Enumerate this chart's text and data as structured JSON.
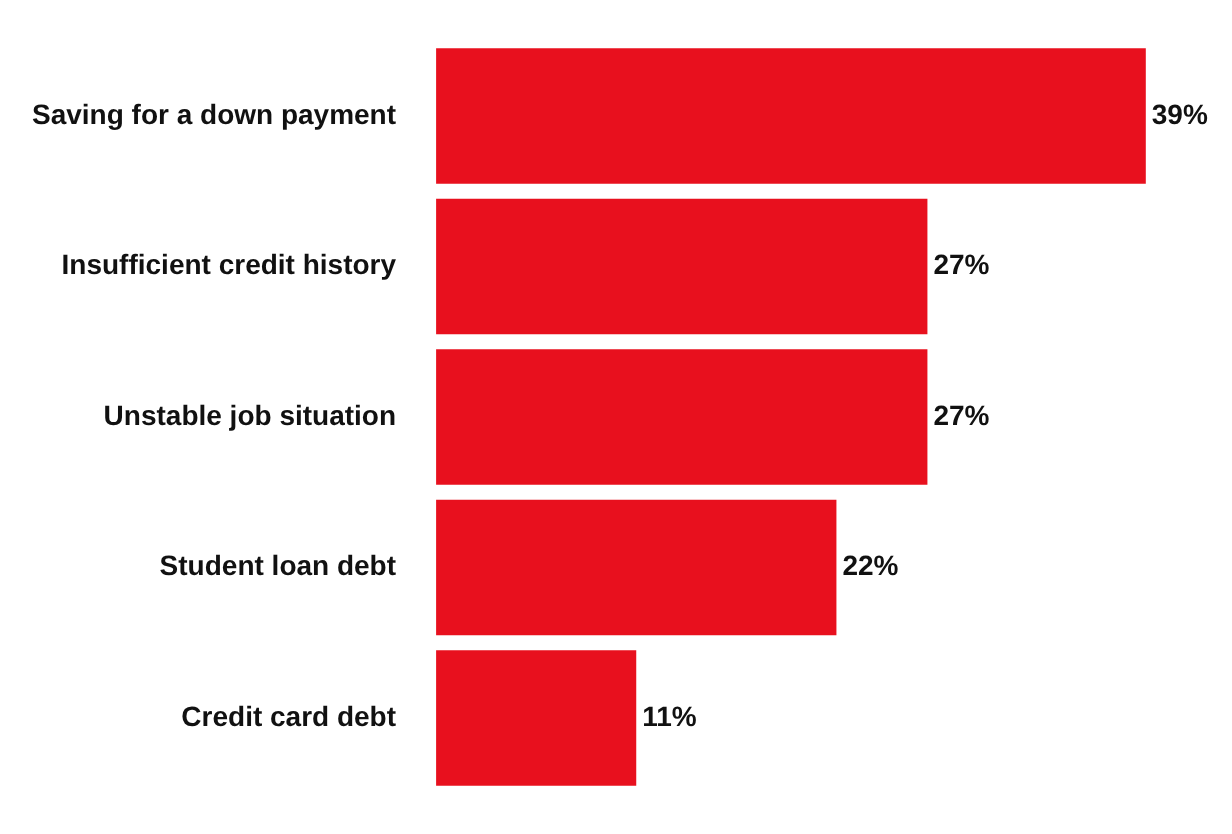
{
  "chart_data": {
    "type": "bar",
    "orientation": "horizontal",
    "categories": [
      "Saving for a down payment",
      "Insufficient credit history",
      "Unstable job situation",
      "Student loan debt",
      "Credit card debt"
    ],
    "values": [
      39,
      27,
      27,
      22,
      11
    ],
    "value_labels": [
      "39%",
      "27%",
      "27%",
      "22%",
      "11%"
    ],
    "color": "#e8101e",
    "legend": false
  }
}
